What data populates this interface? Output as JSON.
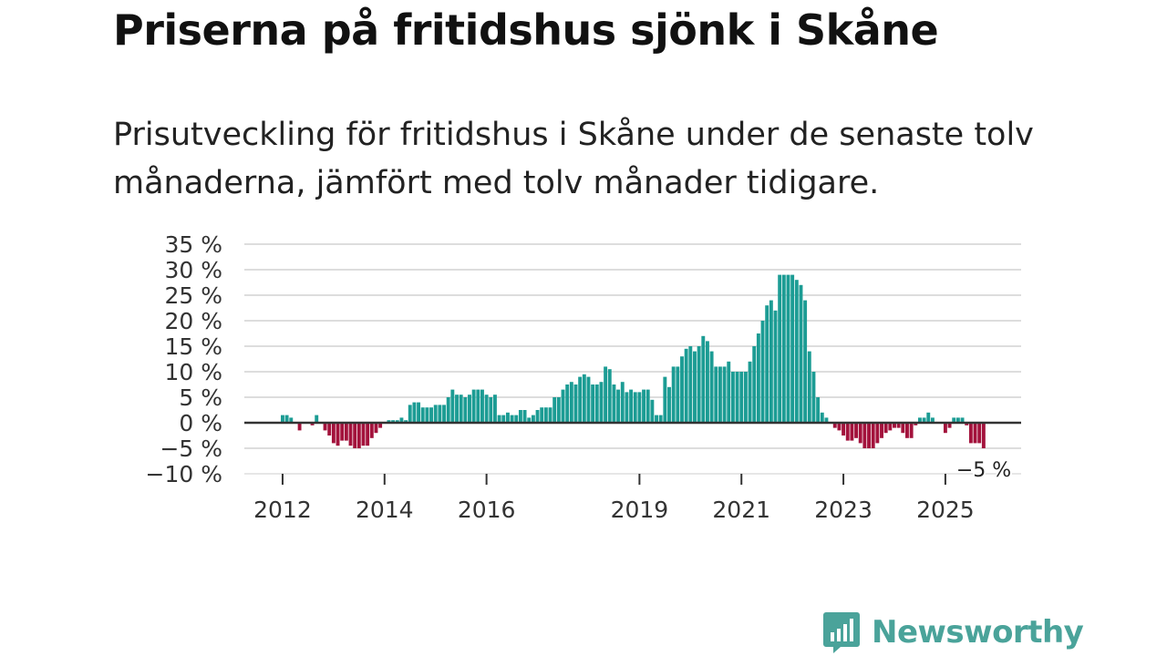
{
  "header": {
    "title": "Priserna på fritidshus sjönk i Skåne",
    "subtitle": "Prisutveckling för fritidshus i Skåne under de senaste tolv månaderna, jämfört med tolv månader tidigare."
  },
  "brand": {
    "name": "Newsworthy",
    "color": "#4aa39a"
  },
  "colors": {
    "positive": "#1c9c94",
    "negative": "#a3123c",
    "grid": "#dddddd",
    "zero": "#333333"
  },
  "chart_data": {
    "type": "bar",
    "title": "",
    "xlabel": "",
    "ylabel": "",
    "ylim": [
      -10,
      35
    ],
    "y_ticks": [
      35,
      30,
      25,
      20,
      15,
      10,
      5,
      0,
      -5,
      -10
    ],
    "y_tick_labels": [
      "35 %",
      "30 %",
      "25 %",
      "20 %",
      "15 %",
      "10 %",
      "5 %",
      "0 %",
      "−5 %",
      "−10 %"
    ],
    "x_tick_labels": [
      "2012",
      "2014",
      "2016",
      "2019",
      "2021",
      "2023",
      "2025"
    ],
    "x_tick_bar_index": [
      0,
      24,
      48,
      84,
      108,
      132,
      156
    ],
    "grid": true,
    "annotation": "−5 %",
    "series": [
      {
        "name": "Prisutveckling",
        "values": [
          1.5,
          1.5,
          1,
          0,
          -1.5,
          0,
          0,
          -0.5,
          1.5,
          0,
          -1.5,
          -2.5,
          -4,
          -4.5,
          -3.5,
          -3.5,
          -4.5,
          -5,
          -5,
          -4.5,
          -4.5,
          -3,
          -2,
          -1,
          0,
          0.5,
          0.5,
          0.5,
          1,
          0.5,
          3.5,
          4,
          4,
          3,
          3,
          3,
          3.5,
          3.5,
          3.5,
          5,
          6.5,
          5.5,
          5.5,
          5,
          5.5,
          6.5,
          6.5,
          6.5,
          5.5,
          5,
          5.5,
          1.5,
          1.5,
          2,
          1.5,
          1.5,
          2.5,
          2.5,
          1,
          1.5,
          2.5,
          3,
          3,
          3,
          5,
          5,
          6.5,
          7.5,
          8,
          7.5,
          9,
          9.5,
          9,
          7.5,
          7.5,
          8,
          11,
          10.5,
          7.5,
          6.5,
          8,
          6,
          6.5,
          6,
          6,
          6.5,
          6.5,
          4.5,
          1.5,
          1.5,
          9,
          7,
          11,
          11,
          13,
          14.5,
          15,
          14,
          15,
          17,
          16,
          14,
          11,
          11,
          11,
          12,
          10,
          10,
          10,
          10,
          12,
          15,
          17.5,
          20,
          23,
          24,
          22,
          29,
          29,
          29,
          29,
          28,
          27,
          24,
          14,
          10,
          5,
          2,
          1,
          0,
          -1,
          -1.5,
          -2.5,
          -3.5,
          -3.5,
          -3,
          -4,
          -5,
          -5,
          -5,
          -4,
          -3,
          -2,
          -1.5,
          -1,
          -1,
          -2,
          -3,
          -3,
          -0.5,
          1,
          1,
          2,
          1,
          0,
          0,
          -2,
          -1,
          1,
          1,
          1,
          -0.5,
          -4,
          -4,
          -4,
          -5
        ]
      }
    ]
  }
}
